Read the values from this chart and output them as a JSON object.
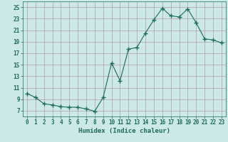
{
  "x": [
    0,
    1,
    2,
    3,
    4,
    5,
    6,
    7,
    8,
    9,
    10,
    11,
    12,
    13,
    14,
    15,
    16,
    17,
    18,
    19,
    20,
    21,
    22,
    23
  ],
  "y": [
    10.0,
    9.3,
    8.2,
    8.0,
    7.7,
    7.6,
    7.6,
    7.3,
    6.9,
    9.3,
    15.3,
    12.2,
    17.7,
    18.0,
    20.5,
    22.8,
    24.8,
    23.5,
    23.3,
    24.7,
    22.3,
    19.5,
    19.3,
    18.8
  ],
  "line_color": "#1a6b5a",
  "marker": "+",
  "marker_size": 4,
  "marker_lw": 1.0,
  "bg_color": "#cce8e8",
  "grid_color": "#b0a0a0",
  "xlabel": "Humidex (Indice chaleur)",
  "xlim": [
    -0.5,
    23.5
  ],
  "ylim": [
    6,
    26
  ],
  "yticks": [
    7,
    9,
    11,
    13,
    15,
    17,
    19,
    21,
    23,
    25
  ],
  "xticks": [
    0,
    1,
    2,
    3,
    4,
    5,
    6,
    7,
    8,
    9,
    10,
    11,
    12,
    13,
    14,
    15,
    16,
    17,
    18,
    19,
    20,
    21,
    22,
    23
  ],
  "xlabel_fontsize": 6.5,
  "tick_fontsize": 5.5,
  "label_color": "#1a6b5a",
  "tick_color": "#1a6b5a",
  "spine_color": "#1a6b5a",
  "linewidth": 0.8
}
